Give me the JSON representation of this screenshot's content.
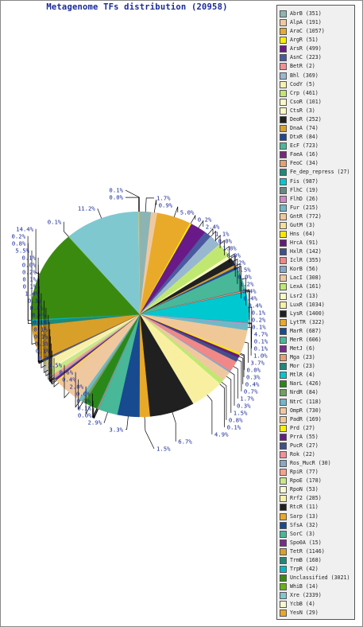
{
  "chart_data": {
    "type": "pie",
    "title": "Metagenome TFs distribution (20958)",
    "slices": [
      {
        "name": "AbrB",
        "value": 351,
        "color": "#8cb4b4",
        "pct": "1.7%"
      },
      {
        "name": "AlpA",
        "value": 191,
        "color": "#f0c8a0",
        "pct": "0.9%"
      },
      {
        "name": "AraC",
        "value": 1057,
        "color": "#e8aa28",
        "pct": "5.0%"
      },
      {
        "name": "ArgR",
        "value": 51,
        "color": "#f8f000",
        "pct": "0.2%"
      },
      {
        "name": "ArsR",
        "value": 499,
        "color": "#6a1a88",
        "pct": "2.4%"
      },
      {
        "name": "AsnC",
        "value": 223,
        "color": "#4a5aa0",
        "pct": "1.1%"
      },
      {
        "name": "BetR",
        "value": 2,
        "color": "#f09098",
        "pct": "0.0%"
      },
      {
        "name": "Bhl",
        "value": 369,
        "color": "#98b8d0",
        "pct": "1.8%"
      },
      {
        "name": "CodY",
        "value": 5,
        "color": "#f8f0b0",
        "pct": "0.0%"
      },
      {
        "name": "Crp",
        "value": 461,
        "color": "#c0e870",
        "pct": "2.2%"
      },
      {
        "name": "CsoR",
        "value": 101,
        "color": "#f8f8c8",
        "pct": "0.5%"
      },
      {
        "name": "CtsR",
        "value": 3,
        "color": "#f8f8c0",
        "pct": "0.0%"
      },
      {
        "name": "DeoR",
        "value": 252,
        "color": "#202020",
        "pct": "1.2%"
      },
      {
        "name": "DnaA",
        "value": 74,
        "color": "#d8a030",
        "pct": "0.4%"
      },
      {
        "name": "DtxR",
        "value": 84,
        "color": "#204890",
        "pct": "0.4%"
      },
      {
        "name": "EcF",
        "value": 723,
        "color": "#48b898",
        "pct": "3.4%"
      },
      {
        "name": "FaeA",
        "value": 16,
        "color": "#78287a",
        "pct": "0.1%"
      },
      {
        "name": "FeoC",
        "value": 34,
        "color": "#e8a070",
        "pct": "0.2%"
      },
      {
        "name": "Fe_dep_repress",
        "value": 27,
        "color": "#208878",
        "pct": "0.1%"
      },
      {
        "name": "Fis",
        "value": 987,
        "color": "#00c8d0",
        "pct": "4.7%"
      },
      {
        "name": "FlhC",
        "value": 19,
        "color": "#688880",
        "pct": "0.1%"
      },
      {
        "name": "FlhD",
        "value": 26,
        "color": "#d088c8",
        "pct": "0.1%"
      },
      {
        "name": "Fur",
        "value": 215,
        "color": "#70b8c8",
        "pct": "1.0%"
      },
      {
        "name": "GntR",
        "value": 772,
        "color": "#f0c898",
        "pct": "3.7%"
      },
      {
        "name": "GutM",
        "value": 3,
        "color": "#f0e098",
        "pct": "0.0%"
      },
      {
        "name": "Hns",
        "value": 64,
        "color": "#f8e800",
        "pct": "0.3%"
      },
      {
        "name": "HrcA",
        "value": 91,
        "color": "#681878",
        "pct": "0.4%"
      },
      {
        "name": "HxlR",
        "value": 142,
        "color": "#40508a",
        "pct": "0.7%"
      },
      {
        "name": "IclR",
        "value": 355,
        "color": "#f08888",
        "pct": "1.7%"
      },
      {
        "name": "KorB",
        "value": 56,
        "color": "#88a8c8",
        "pct": "0.3%"
      },
      {
        "name": "LacI",
        "value": 308,
        "color": "#f0c8a0",
        "pct": "1.5%"
      },
      {
        "name": "LexA",
        "value": 161,
        "color": "#c0e870",
        "pct": "0.8%"
      },
      {
        "name": "Lsr2",
        "value": 13,
        "color": "#f8f8c8",
        "pct": "0.1%"
      },
      {
        "name": "LuxR",
        "value": 1034,
        "color": "#f8f0a0",
        "pct": "4.9%"
      },
      {
        "name": "LysR",
        "value": 1400,
        "color": "#202020",
        "pct": "6.7%"
      },
      {
        "name": "LytTR",
        "value": 322,
        "color": "#e8a828",
        "pct": "1.5%"
      },
      {
        "name": "MarR",
        "value": 687,
        "color": "#184a90",
        "pct": "3.3%"
      },
      {
        "name": "MerR",
        "value": 606,
        "color": "#48b898",
        "pct": "2.9%"
      },
      {
        "name": "MetJ",
        "value": 6,
        "color": "#7a2a88",
        "pct": "0.0%"
      },
      {
        "name": "Mga",
        "value": 23,
        "color": "#e8a070",
        "pct": "0.1%"
      },
      {
        "name": "Mor",
        "value": 23,
        "color": "#208878",
        "pct": "0.1%"
      },
      {
        "name": "MtlR",
        "value": 4,
        "color": "#00c8d0",
        "pct": "0.0%"
      },
      {
        "name": "NarL",
        "value": 426,
        "color": "#2a8818",
        "pct": "2.0%"
      },
      {
        "name": "NrdR",
        "value": 84,
        "color": "#70a060",
        "pct": "0.4%"
      },
      {
        "name": "NtrC",
        "value": 118,
        "color": "#70b8c8",
        "pct": "0.6%"
      },
      {
        "name": "OmpR",
        "value": 730,
        "color": "#f0c8a0",
        "pct": "3.5%"
      },
      {
        "name": "PadR",
        "value": 169,
        "color": "#f0c890",
        "pct": "0.8%"
      },
      {
        "name": "Prd",
        "value": 27,
        "color": "#f8f000",
        "pct": "0.1%"
      },
      {
        "name": "PrrA",
        "value": 55,
        "color": "#6a1a88",
        "pct": "0.3%"
      },
      {
        "name": "PucR",
        "value": 27,
        "color": "#40508a",
        "pct": "0.1%"
      },
      {
        "name": "Rok",
        "value": 22,
        "color": "#f09098",
        "pct": "0.1%"
      },
      {
        "name": "Ros_MucR",
        "value": 30,
        "color": "#88a8c8",
        "pct": "0.1%"
      },
      {
        "name": "RpiR",
        "value": 77,
        "color": "#f8a090",
        "pct": "0.4%"
      },
      {
        "name": "RpoE",
        "value": 178,
        "color": "#c8e888",
        "pct": "0.8%"
      },
      {
        "name": "RpoN",
        "value": 53,
        "color": "#f8f8d0",
        "pct": "0.3%"
      },
      {
        "name": "Rrf2",
        "value": 285,
        "color": "#f8f0a8",
        "pct": "1.4%"
      },
      {
        "name": "RtcR",
        "value": 11,
        "color": "#202020",
        "pct": "0.1%"
      },
      {
        "name": "Sarp",
        "value": 13,
        "color": "#e8a828",
        "pct": "0.1%"
      },
      {
        "name": "SfsA",
        "value": 32,
        "color": "#184a90",
        "pct": "0.2%"
      },
      {
        "name": "SorC",
        "value": 3,
        "color": "#48b898",
        "pct": "0.0%"
      },
      {
        "name": "Spo0A",
        "value": 15,
        "color": "#7a2a88",
        "pct": "0.1%"
      },
      {
        "name": "TetR",
        "value": 1146,
        "color": "#d8a028",
        "pct": "5.5%"
      },
      {
        "name": "TrmB",
        "value": 168,
        "color": "#208878",
        "pct": "0.8%"
      },
      {
        "name": "TrpR",
        "value": 42,
        "color": "#00b8c8",
        "pct": "0.2%"
      },
      {
        "name": "Unclassified",
        "value": 3021,
        "color": "#3a8a10",
        "pct": "14.4%"
      },
      {
        "name": "WhiB",
        "value": 14,
        "color": "#68b018",
        "pct": "0.1%"
      },
      {
        "name": "Xre",
        "value": 2339,
        "color": "#80c8d0",
        "pct": "11.2%"
      },
      {
        "name": "YcbB",
        "value": 4,
        "color": "#f8f8d0",
        "pct": "0.0%"
      },
      {
        "name": "YesN",
        "value": 29,
        "color": "#e8a828",
        "pct": "0.1%"
      }
    ]
  }
}
